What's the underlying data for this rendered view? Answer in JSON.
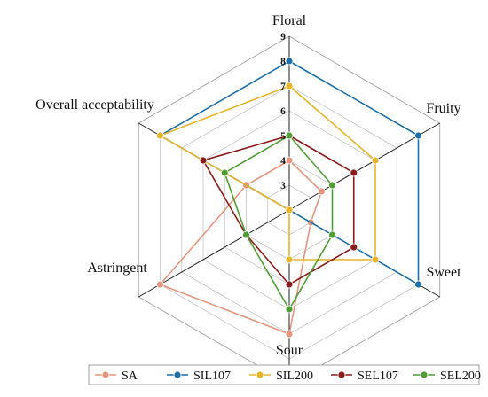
{
  "chart_data": {
    "type": "radar",
    "axes": [
      "Floral",
      "Fruity",
      "Sweet",
      "Sour",
      "Astringent",
      "Overall acceptability"
    ],
    "range": [
      2,
      9
    ],
    "ticks": [
      "3",
      "4",
      "5",
      "6",
      "7",
      "8",
      "9"
    ],
    "grid": "hexagonal",
    "legend_position": "bottom",
    "series": [
      {
        "name": "SA",
        "color": "#e8957e",
        "values": [
          4,
          3.5,
          3,
          7,
          8,
          4
        ]
      },
      {
        "name": "SIL107",
        "color": "#1f6fa8",
        "values": [
          8,
          8,
          8,
          2,
          2,
          8
        ]
      },
      {
        "name": "SIL200",
        "color": "#e6b428",
        "values": [
          7,
          6,
          6,
          4,
          2,
          8
        ]
      },
      {
        "name": "SEL107",
        "color": "#8b1a1a",
        "values": [
          5,
          5,
          5,
          5,
          4,
          6
        ]
      },
      {
        "name": "SEL200",
        "color": "#4f9e35",
        "values": [
          5,
          4,
          4,
          6,
          4,
          5
        ]
      }
    ]
  }
}
